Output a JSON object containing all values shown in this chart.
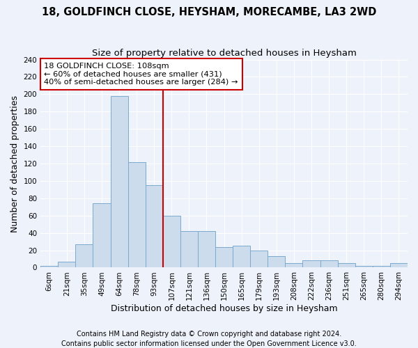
{
  "title1": "18, GOLDFINCH CLOSE, HEYSHAM, MORECAMBE, LA3 2WD",
  "title2": "Size of property relative to detached houses in Heysham",
  "xlabel": "Distribution of detached houses by size in Heysham",
  "ylabel": "Number of detached properties",
  "footer1": "Contains HM Land Registry data © Crown copyright and database right 2024.",
  "footer2": "Contains public sector information licensed under the Open Government Licence v3.0.",
  "bin_labels": [
    "6sqm",
    "21sqm",
    "35sqm",
    "49sqm",
    "64sqm",
    "78sqm",
    "93sqm",
    "107sqm",
    "121sqm",
    "136sqm",
    "150sqm",
    "165sqm",
    "179sqm",
    "193sqm",
    "208sqm",
    "222sqm",
    "236sqm",
    "251sqm",
    "265sqm",
    "280sqm",
    "294sqm"
  ],
  "bar_heights": [
    2,
    7,
    27,
    74,
    198,
    122,
    95,
    60,
    42,
    42,
    24,
    25,
    20,
    13,
    5,
    8,
    8,
    5,
    2,
    2,
    5
  ],
  "bar_color": "#ccdcec",
  "bar_edge_color": "#7aaace",
  "property_size_idx": 6,
  "vline_x": 6.5,
  "vline_color": "#cc0000",
  "annotation_text": "18 GOLDFINCH CLOSE: 108sqm\n← 60% of detached houses are smaller (431)\n40% of semi-detached houses are larger (284) →",
  "annotation_box_color": "white",
  "annotation_box_edge": "#cc0000",
  "ylim": [
    0,
    240
  ],
  "yticks": [
    0,
    20,
    40,
    60,
    80,
    100,
    120,
    140,
    160,
    180,
    200,
    220,
    240
  ],
  "background_color": "#eef2fa",
  "grid_color": "white",
  "title_fontsize": 10.5,
  "subtitle_fontsize": 9.5,
  "axis_label_fontsize": 9,
  "tick_fontsize": 7.5,
  "footer_fontsize": 7
}
